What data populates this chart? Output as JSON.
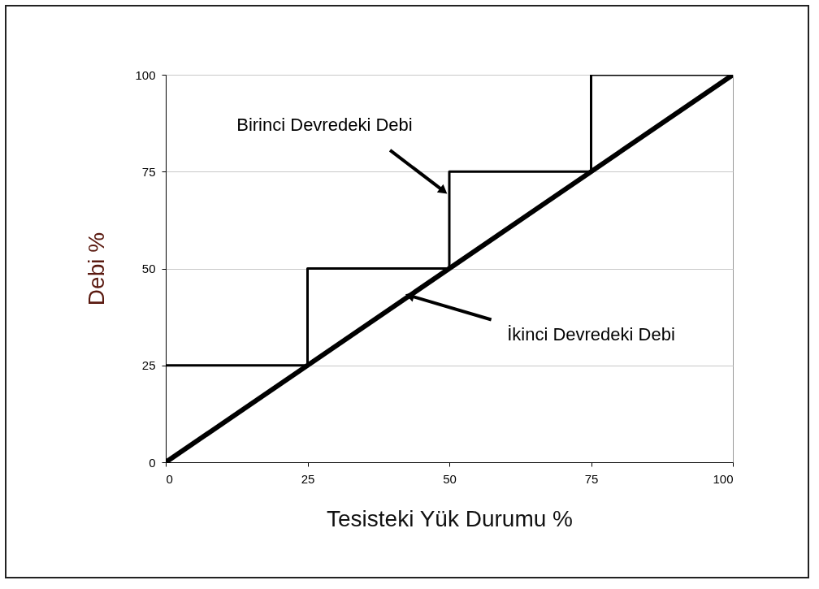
{
  "chart_data": {
    "type": "line",
    "xlabel": "Tesisteki Yük Durumu %",
    "ylabel": "Debi %",
    "xlim": [
      0,
      100
    ],
    "ylim": [
      0,
      100
    ],
    "xticks": [
      0,
      25,
      50,
      75,
      100
    ],
    "yticks": [
      0,
      25,
      50,
      75,
      100
    ],
    "grid": "y",
    "series": [
      {
        "type": "step",
        "color": "#000000",
        "x": [
          0,
          25,
          50,
          75,
          100
        ],
        "values": [
          25,
          50,
          75,
          100,
          100
        ]
      },
      {
        "type": "line",
        "color": "#000000",
        "x": [
          0,
          100
        ],
        "values": [
          0,
          100
        ]
      }
    ],
    "annotations": [
      {
        "text": "Birinci Devredeki Debi",
        "x": 49,
        "y": 70
      },
      {
        "text": "İkinci Devredeki Debi",
        "x": 43,
        "y": 43
      }
    ]
  }
}
